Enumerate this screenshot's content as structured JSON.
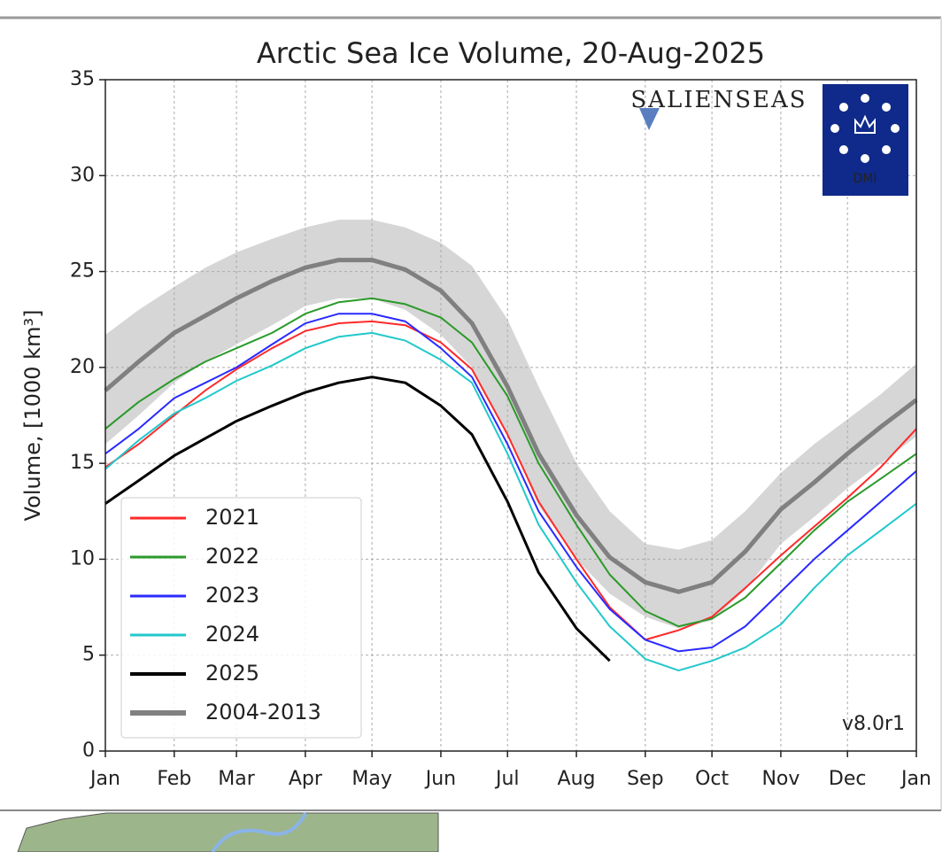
{
  "chart_data": {
    "type": "line",
    "title": "Arctic Sea Ice Volume, 20-Aug-2025",
    "y_label": "Volume, [1000 km³]",
    "annotation": "v8.0r1",
    "logos": [
      "SALIENSEAS",
      "DMI"
    ],
    "x": [
      0,
      15,
      31,
      45,
      59,
      75,
      90,
      105,
      120,
      135,
      151,
      165,
      181,
      195,
      212,
      227,
      243,
      258,
      273,
      288,
      304,
      319,
      334,
      349,
      365
    ],
    "xlim": [
      0,
      365
    ],
    "xticks": [
      {
        "value": 0,
        "label": "Jan"
      },
      {
        "value": 31,
        "label": "Feb"
      },
      {
        "value": 59,
        "label": "Mar"
      },
      {
        "value": 90,
        "label": "Apr"
      },
      {
        "value": 120,
        "label": "May"
      },
      {
        "value": 151,
        "label": "Jun"
      },
      {
        "value": 181,
        "label": "Jul"
      },
      {
        "value": 212,
        "label": "Aug"
      },
      {
        "value": 243,
        "label": "Sep"
      },
      {
        "value": 273,
        "label": "Oct"
      },
      {
        "value": 304,
        "label": "Nov"
      },
      {
        "value": 334,
        "label": "Dec"
      },
      {
        "value": 365,
        "label": "Jan"
      }
    ],
    "ylim": [
      0,
      35
    ],
    "yticks": [
      0,
      5,
      10,
      15,
      20,
      25,
      30,
      35
    ],
    "grid": true,
    "legend": "lower left",
    "band": {
      "color": "#d6d6d6",
      "upper": [
        21.7,
        23.0,
        24.2,
        25.2,
        26.0,
        26.7,
        27.3,
        27.7,
        27.7,
        27.3,
        26.5,
        25.3,
        22.5,
        19.0,
        15.0,
        12.5,
        10.8,
        10.5,
        11.0,
        12.5,
        14.5,
        16.0,
        17.3,
        18.6,
        20.2
      ],
      "lower": [
        16.0,
        17.5,
        19.2,
        20.3,
        21.2,
        22.2,
        23.2,
        23.6,
        23.6,
        23.0,
        21.7,
        20.0,
        16.5,
        12.8,
        10.0,
        8.2,
        7.0,
        6.4,
        6.8,
        8.4,
        10.8,
        12.2,
        13.7,
        15.0,
        16.4
      ]
    },
    "series": [
      {
        "name": "2021",
        "color": "#ff2a2a",
        "width": 2,
        "values": [
          14.8,
          16.0,
          17.5,
          18.8,
          19.9,
          21.0,
          21.9,
          22.3,
          22.4,
          22.2,
          21.3,
          19.9,
          16.5,
          13.0,
          10.0,
          7.5,
          5.8,
          6.3,
          7.0,
          8.5,
          10.2,
          11.7,
          13.2,
          14.8,
          16.8
        ]
      },
      {
        "name": "2022",
        "color": "#2a9a2a",
        "width": 2,
        "values": [
          16.8,
          18.2,
          19.4,
          20.3,
          21.0,
          21.8,
          22.8,
          23.4,
          23.6,
          23.3,
          22.6,
          21.3,
          18.5,
          15.0,
          11.8,
          9.2,
          7.3,
          6.5,
          6.9,
          8.0,
          9.8,
          11.5,
          13.0,
          14.2,
          15.5
        ]
      },
      {
        "name": "2023",
        "color": "#2a2aff",
        "width": 2,
        "values": [
          15.5,
          16.8,
          18.4,
          19.2,
          20.0,
          21.2,
          22.3,
          22.8,
          22.8,
          22.4,
          21.0,
          19.5,
          16.0,
          12.5,
          9.6,
          7.4,
          5.8,
          5.2,
          5.4,
          6.5,
          8.3,
          10.0,
          11.5,
          13.0,
          14.6
        ]
      },
      {
        "name": "2024",
        "color": "#22c8cc",
        "width": 2,
        "values": [
          14.7,
          16.2,
          17.6,
          18.4,
          19.3,
          20.1,
          21.0,
          21.6,
          21.8,
          21.4,
          20.4,
          19.2,
          15.5,
          11.8,
          8.8,
          6.5,
          4.8,
          4.2,
          4.7,
          5.4,
          6.6,
          8.5,
          10.2,
          11.5,
          12.9
        ]
      },
      {
        "name": "2025",
        "color": "#000000",
        "width": 3,
        "values": [
          12.9,
          14.1,
          15.4,
          16.3,
          17.2,
          18.0,
          18.7,
          19.2,
          19.5,
          19.2,
          18.0,
          16.5,
          13.0,
          9.3,
          6.4,
          4.7,
          null,
          null,
          null,
          null,
          null,
          null,
          null,
          null,
          null
        ]
      },
      {
        "name": "2004-2013",
        "color": "#808080",
        "width": 5,
        "values": [
          18.8,
          20.3,
          21.8,
          22.7,
          23.6,
          24.5,
          25.2,
          25.6,
          25.6,
          25.1,
          24.0,
          22.3,
          19.0,
          15.5,
          12.3,
          10.1,
          8.8,
          8.3,
          8.8,
          10.4,
          12.6,
          14.0,
          15.5,
          16.9,
          18.3
        ]
      }
    ]
  }
}
